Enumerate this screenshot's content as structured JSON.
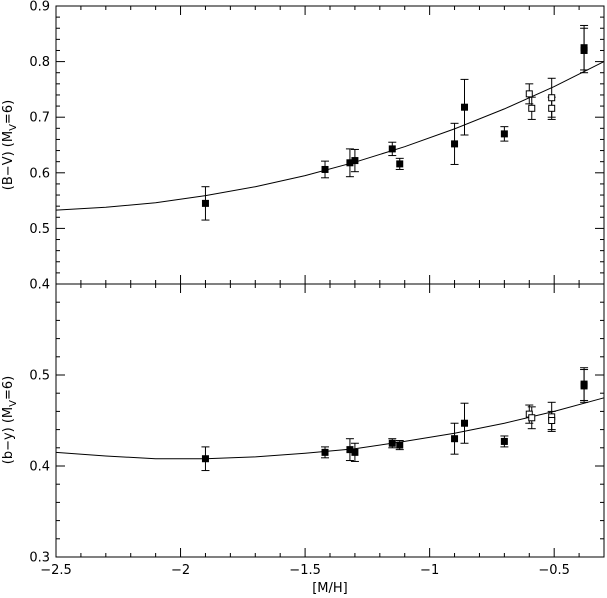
{
  "chart_data": [
    {
      "type": "scatter",
      "title": "",
      "xlabel": "[M/H]",
      "ylabel": "(B−V)  (M",
      "ylabel_sub": "V",
      "ylabel_tail": "=6)",
      "xlim": [
        -2.5,
        -0.3
      ],
      "ylim": [
        0.4,
        0.9
      ],
      "yticks": [
        "0.4",
        "0.5",
        "0.6",
        "0.7",
        "0.8",
        "0.9"
      ],
      "xticks": [],
      "series": [
        {
          "marker": "filled-square",
          "points": [
            {
              "x": -1.9,
              "y": 0.545,
              "err": 0.03
            },
            {
              "x": -1.42,
              "y": 0.606,
              "err": 0.015
            },
            {
              "x": -1.32,
              "y": 0.618,
              "err": 0.025
            },
            {
              "x": -1.3,
              "y": 0.622,
              "err": 0.02
            },
            {
              "x": -1.15,
              "y": 0.643,
              "err": 0.012
            },
            {
              "x": -1.12,
              "y": 0.616,
              "err": 0.01
            },
            {
              "x": -0.9,
              "y": 0.652,
              "err": 0.037
            },
            {
              "x": -0.86,
              "y": 0.718,
              "err": 0.05
            },
            {
              "x": -0.7,
              "y": 0.67,
              "err": 0.013
            },
            {
              "x": -0.38,
              "y": 0.82,
              "err": 0.04
            },
            {
              "x": -0.38,
              "y": 0.825,
              "err": 0.04
            }
          ]
        },
        {
          "marker": "open-square",
          "points": [
            {
              "x": -0.6,
              "y": 0.742,
              "err": 0.018
            },
            {
              "x": -0.59,
              "y": 0.716,
              "err": 0.02
            },
            {
              "x": -0.51,
              "y": 0.735,
              "err": 0.035
            },
            {
              "x": -0.51,
              "y": 0.716,
              "err": 0.02
            }
          ]
        }
      ],
      "fit_curve": {
        "x": [
          -2.5,
          -2.3,
          -2.1,
          -1.9,
          -1.7,
          -1.5,
          -1.3,
          -1.1,
          -0.9,
          -0.7,
          -0.5,
          -0.3
        ],
        "y": [
          0.533,
          0.538,
          0.546,
          0.559,
          0.575,
          0.595,
          0.619,
          0.647,
          0.679,
          0.715,
          0.755,
          0.8
        ]
      }
    },
    {
      "type": "scatter",
      "title": "",
      "xlabel": "[M/H]",
      "ylabel": "(b−y)  (M",
      "ylabel_sub": "V",
      "ylabel_tail": "=6)",
      "xlim": [
        -2.5,
        -0.3
      ],
      "ylim": [
        0.3,
        0.6
      ],
      "yticks": [
        "0.3",
        "0.4",
        "0.5"
      ],
      "xticks": [
        "−2.5",
        "−2",
        "−1.5",
        "−1",
        "−0.5"
      ],
      "xtick_values": [
        -2.5,
        -2.0,
        -1.5,
        -1.0,
        -0.5
      ],
      "series": [
        {
          "marker": "filled-square",
          "points": [
            {
              "x": -1.9,
              "y": 0.408,
              "err": 0.013
            },
            {
              "x": -1.42,
              "y": 0.415,
              "err": 0.006
            },
            {
              "x": -1.32,
              "y": 0.418,
              "err": 0.012
            },
            {
              "x": -1.3,
              "y": 0.415,
              "err": 0.01
            },
            {
              "x": -1.15,
              "y": 0.425,
              "err": 0.005
            },
            {
              "x": -1.12,
              "y": 0.423,
              "err": 0.005
            },
            {
              "x": -0.9,
              "y": 0.43,
              "err": 0.017
            },
            {
              "x": -0.86,
              "y": 0.447,
              "err": 0.022
            },
            {
              "x": -0.7,
              "y": 0.427,
              "err": 0.006
            },
            {
              "x": -0.38,
              "y": 0.488,
              "err": 0.018
            },
            {
              "x": -0.38,
              "y": 0.49,
              "err": 0.018
            }
          ]
        },
        {
          "marker": "open-square",
          "points": [
            {
              "x": -0.6,
              "y": 0.457,
              "err": 0.01
            },
            {
              "x": -0.59,
              "y": 0.453,
              "err": 0.012
            },
            {
              "x": -0.51,
              "y": 0.454,
              "err": 0.016
            },
            {
              "x": -0.51,
              "y": 0.45,
              "err": 0.01
            }
          ]
        }
      ],
      "fit_curve": {
        "x": [
          -2.5,
          -2.3,
          -2.1,
          -1.9,
          -1.7,
          -1.5,
          -1.3,
          -1.1,
          -0.9,
          -0.7,
          -0.5,
          -0.3
        ],
        "y": [
          0.415,
          0.411,
          0.408,
          0.408,
          0.41,
          0.414,
          0.419,
          0.427,
          0.436,
          0.447,
          0.46,
          0.475
        ]
      }
    }
  ]
}
